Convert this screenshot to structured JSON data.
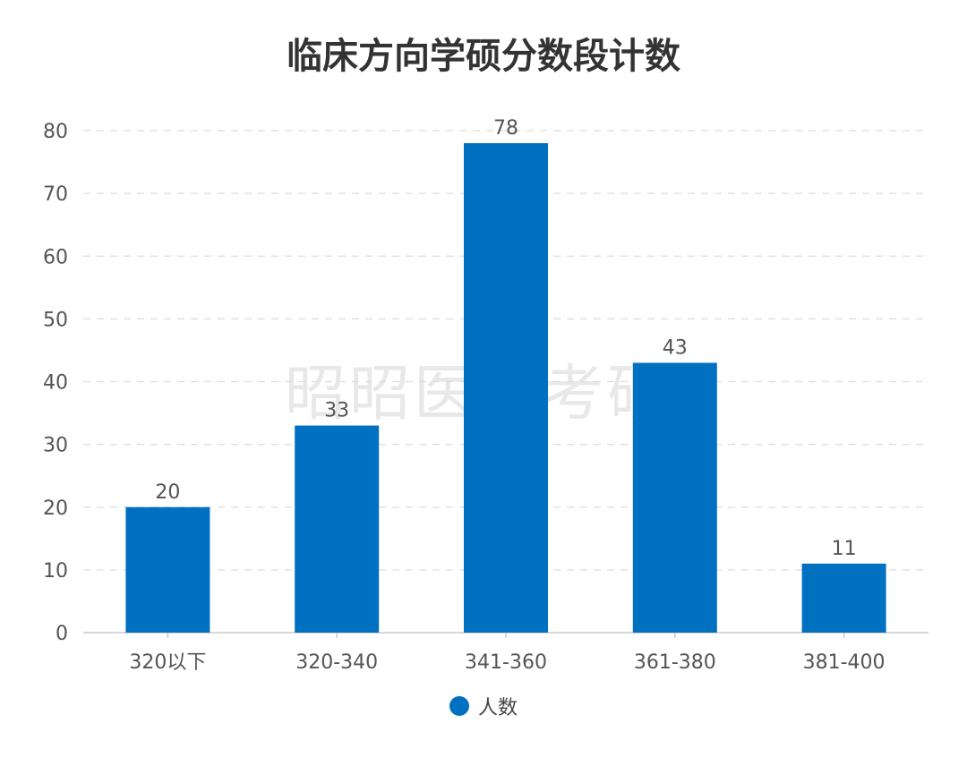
{
  "chart_data": {
    "type": "bar",
    "title": "临床方向学硕分数段计数",
    "categories": [
      "320以下",
      "320-340",
      "341-360",
      "361-380",
      "381-400"
    ],
    "series": [
      {
        "name": "人数",
        "values": [
          20,
          33,
          78,
          43,
          11
        ]
      }
    ],
    "xlabel": "",
    "ylabel": "",
    "ylim": [
      0,
      80
    ],
    "yticks": [
      0,
      10,
      20,
      30,
      40,
      50,
      60,
      70,
      80
    ],
    "grid": true,
    "legend": "bottom-center",
    "data_labels": true,
    "bar_color": "#0070c0"
  },
  "watermark": "昭昭医学考研"
}
